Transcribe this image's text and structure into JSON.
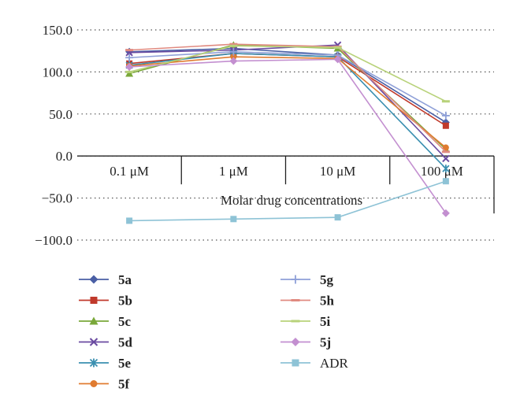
{
  "chart_data": {
    "type": "line",
    "categories": [
      "0.1 μM",
      "1 μM",
      "10 μM",
      "100 μM"
    ],
    "xlabel": "Molar drug concentrations",
    "ylabel": "",
    "ylim": [
      -100,
      150
    ],
    "yticks": [
      "150.0",
      "100.0",
      "50.0",
      "0.0",
      "−50.0",
      "−100.0"
    ],
    "grid": "dotted-horizontal",
    "legend_position": "bottom",
    "series": [
      {
        "name": "5a",
        "color": "#4a5fa5",
        "marker": "diamond",
        "values": [
          124,
          128,
          120,
          40
        ]
      },
      {
        "name": "5b",
        "color": "#c0392b",
        "marker": "square",
        "values": [
          110,
          122,
          118,
          36
        ]
      },
      {
        "name": "5c",
        "color": "#7aa83a",
        "marker": "triangle",
        "values": [
          98,
          132,
          128,
          8
        ]
      },
      {
        "name": "5d",
        "color": "#6a4aa0",
        "marker": "x",
        "values": [
          123,
          126,
          132,
          -3
        ]
      },
      {
        "name": "5e",
        "color": "#3a8fb0",
        "marker": "asterisk",
        "values": [
          108,
          122,
          118,
          -15
        ]
      },
      {
        "name": "5f",
        "color": "#e07b30",
        "marker": "circle",
        "values": [
          107,
          118,
          116,
          10
        ]
      },
      {
        "name": "5g",
        "color": "#8fa0d8",
        "marker": "plus",
        "values": [
          117,
          124,
          120,
          48
        ]
      },
      {
        "name": "5h",
        "color": "#e08a80",
        "marker": "dash",
        "values": [
          126,
          133,
          130,
          5
        ]
      },
      {
        "name": "5i",
        "color": "#b8d27a",
        "marker": "dash",
        "values": [
          100,
          131,
          129,
          65
        ]
      },
      {
        "name": "5j",
        "color": "#c38fd0",
        "marker": "diamond",
        "values": [
          106,
          113,
          115,
          -68
        ]
      },
      {
        "name": "ADR",
        "color": "#8ec3d6",
        "marker": "square",
        "values": [
          -77,
          -75,
          -73,
          -30
        ]
      }
    ]
  }
}
